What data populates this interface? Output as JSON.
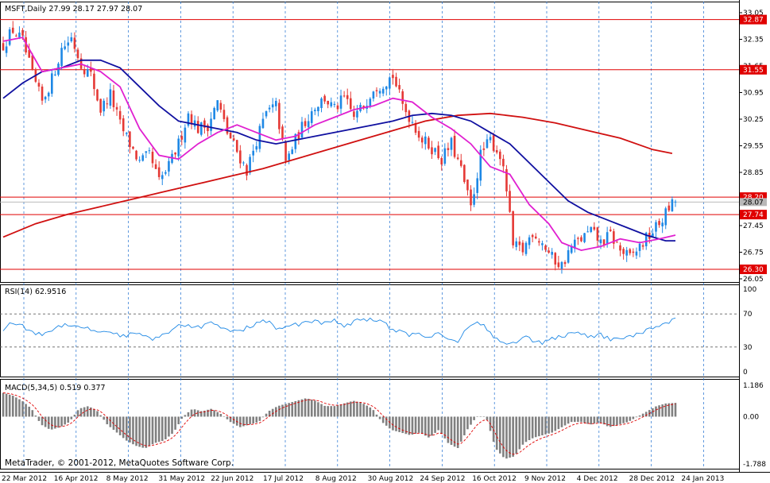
{
  "main_header": "MSFT,Daily  27.99 28.17 27.97 28.07",
  "rsi_header": "RSI(14) 62.9516",
  "macd_header": "MACD(5,34,5) 0.519 0.377",
  "copyright": "MetaTrader, © 2001-2012, MetaQuotes Software Corp.",
  "colors": {
    "bull": "#1e88e5",
    "bear": "#e53935",
    "ma_fast": "#e020d0",
    "ma_mid": "#1010a0",
    "ma_slow": "#d01010",
    "hline": "#e00000",
    "rsi": "#1e88e5",
    "macd_hist": "#808080",
    "macd_signal": "#e00000",
    "grid": "#1e6fd0"
  },
  "chart_data": [
    {
      "type": "candlestick",
      "symbol": "MSFT",
      "timeframe": "Daily",
      "ylim": [
        26.05,
        33.05
      ],
      "y_ticks": [
        "33.05",
        "32.35",
        "31.65",
        "30.95",
        "30.25",
        "29.55",
        "28.85",
        "28.15",
        "27.45",
        "26.75",
        "26.05"
      ],
      "x_labels": [
        "22 Mar 2012",
        "16 Apr 2012",
        "8 May 2012",
        "31 May 2012",
        "22 Jun 2012",
        "17 Jul 2012",
        "8 Aug 2012",
        "30 Aug 2012",
        "24 Sep 2012",
        "16 Oct 2012",
        "9 Nov 2012",
        "4 Dec 2012",
        "28 Dec 2012",
        "24 Jan 2013"
      ],
      "horizontal_levels": [
        "32.87",
        "31.55",
        "28.20",
        "27.74",
        "26.30"
      ],
      "current_price": "28.07",
      "close_path": [
        {
          "t": 0,
          "v": 32.2
        },
        {
          "t": 3,
          "v": 32.6
        },
        {
          "t": 6,
          "v": 32.3
        },
        {
          "t": 9,
          "v": 31.4
        },
        {
          "t": 12,
          "v": 30.7
        },
        {
          "t": 15,
          "v": 31.3
        },
        {
          "t": 18,
          "v": 32.1
        },
        {
          "t": 21,
          "v": 32.4
        },
        {
          "t": 24,
          "v": 31.7
        },
        {
          "t": 27,
          "v": 31.4
        },
        {
          "t": 30,
          "v": 30.5
        },
        {
          "t": 33,
          "v": 30.9
        },
        {
          "t": 36,
          "v": 30.1
        },
        {
          "t": 39,
          "v": 29.6
        },
        {
          "t": 42,
          "v": 29.1
        },
        {
          "t": 45,
          "v": 29.3
        },
        {
          "t": 48,
          "v": 28.6
        },
        {
          "t": 51,
          "v": 29.0
        },
        {
          "t": 54,
          "v": 29.6
        },
        {
          "t": 57,
          "v": 30.4
        },
        {
          "t": 60,
          "v": 30.0
        },
        {
          "t": 63,
          "v": 30.1
        },
        {
          "t": 66,
          "v": 30.7
        },
        {
          "t": 69,
          "v": 29.9
        },
        {
          "t": 72,
          "v": 29.4
        },
        {
          "t": 75,
          "v": 28.9
        },
        {
          "t": 78,
          "v": 29.7
        },
        {
          "t": 81,
          "v": 30.4
        },
        {
          "t": 84,
          "v": 30.6
        },
        {
          "t": 87,
          "v": 29.1
        },
        {
          "t": 90,
          "v": 29.7
        },
        {
          "t": 93,
          "v": 30.2
        },
        {
          "t": 96,
          "v": 30.6
        },
        {
          "t": 99,
          "v": 30.8
        },
        {
          "t": 102,
          "v": 30.5
        },
        {
          "t": 105,
          "v": 30.8
        },
        {
          "t": 108,
          "v": 30.3
        },
        {
          "t": 111,
          "v": 30.6
        },
        {
          "t": 114,
          "v": 31.1
        },
        {
          "t": 117,
          "v": 31.2
        },
        {
          "t": 120,
          "v": 31.4
        },
        {
          "t": 123,
          "v": 30.6
        },
        {
          "t": 126,
          "v": 30.2
        },
        {
          "t": 129,
          "v": 29.7
        },
        {
          "t": 132,
          "v": 29.5
        },
        {
          "t": 135,
          "v": 29.2
        },
        {
          "t": 138,
          "v": 29.6
        },
        {
          "t": 141,
          "v": 28.9
        },
        {
          "t": 144,
          "v": 27.9
        },
        {
          "t": 147,
          "v": 29.3
        },
        {
          "t": 150,
          "v": 29.7
        },
        {
          "t": 153,
          "v": 29.3
        },
        {
          "t": 155,
          "v": 28.4
        },
        {
          "t": 157,
          "v": 26.9
        },
        {
          "t": 160,
          "v": 26.8
        },
        {
          "t": 163,
          "v": 27.3
        },
        {
          "t": 166,
          "v": 27.0
        },
        {
          "t": 169,
          "v": 26.6
        },
        {
          "t": 172,
          "v": 26.4
        },
        {
          "t": 175,
          "v": 26.9
        },
        {
          "t": 178,
          "v": 27.1
        },
        {
          "t": 181,
          "v": 27.3
        },
        {
          "t": 184,
          "v": 27.0
        },
        {
          "t": 187,
          "v": 27.2
        },
        {
          "t": 190,
          "v": 26.8
        },
        {
          "t": 193,
          "v": 26.6
        },
        {
          "t": 196,
          "v": 26.9
        },
        {
          "t": 199,
          "v": 27.2
        },
        {
          "t": 202,
          "v": 27.5
        },
        {
          "t": 205,
          "v": 27.9
        },
        {
          "t": 207,
          "v": 28.1
        }
      ],
      "ma_fast_path": [
        {
          "t": 0,
          "v": 32.3
        },
        {
          "t": 6,
          "v": 32.4
        },
        {
          "t": 12,
          "v": 31.5
        },
        {
          "t": 18,
          "v": 31.6
        },
        {
          "t": 24,
          "v": 31.7
        },
        {
          "t": 30,
          "v": 31.5
        },
        {
          "t": 36,
          "v": 31.1
        },
        {
          "t": 42,
          "v": 30.0
        },
        {
          "t": 48,
          "v": 29.3
        },
        {
          "t": 54,
          "v": 29.2
        },
        {
          "t": 60,
          "v": 29.6
        },
        {
          "t": 66,
          "v": 29.9
        },
        {
          "t": 72,
          "v": 30.1
        },
        {
          "t": 78,
          "v": 29.9
        },
        {
          "t": 84,
          "v": 29.7
        },
        {
          "t": 90,
          "v": 29.8
        },
        {
          "t": 96,
          "v": 30.1
        },
        {
          "t": 102,
          "v": 30.3
        },
        {
          "t": 108,
          "v": 30.5
        },
        {
          "t": 114,
          "v": 30.6
        },
        {
          "t": 120,
          "v": 30.8
        },
        {
          "t": 126,
          "v": 30.7
        },
        {
          "t": 132,
          "v": 30.3
        },
        {
          "t": 138,
          "v": 30.0
        },
        {
          "t": 144,
          "v": 29.6
        },
        {
          "t": 150,
          "v": 29.0
        },
        {
          "t": 156,
          "v": 28.8
        },
        {
          "t": 162,
          "v": 28.0
        },
        {
          "t": 168,
          "v": 27.5
        },
        {
          "t": 172,
          "v": 27.0
        },
        {
          "t": 178,
          "v": 26.8
        },
        {
          "t": 184,
          "v": 26.9
        },
        {
          "t": 190,
          "v": 27.1
        },
        {
          "t": 196,
          "v": 27.0
        },
        {
          "t": 202,
          "v": 27.1
        },
        {
          "t": 207,
          "v": 27.2
        }
      ],
      "ma_mid_path": [
        {
          "t": 0,
          "v": 30.8
        },
        {
          "t": 6,
          "v": 31.2
        },
        {
          "t": 12,
          "v": 31.5
        },
        {
          "t": 18,
          "v": 31.6
        },
        {
          "t": 24,
          "v": 31.8
        },
        {
          "t": 30,
          "v": 31.8
        },
        {
          "t": 36,
          "v": 31.6
        },
        {
          "t": 42,
          "v": 31.1
        },
        {
          "t": 48,
          "v": 30.6
        },
        {
          "t": 54,
          "v": 30.2
        },
        {
          "t": 60,
          "v": 30.1
        },
        {
          "t": 66,
          "v": 30.0
        },
        {
          "t": 72,
          "v": 29.9
        },
        {
          "t": 78,
          "v": 29.7
        },
        {
          "t": 84,
          "v": 29.6
        },
        {
          "t": 90,
          "v": 29.7
        },
        {
          "t": 96,
          "v": 29.8
        },
        {
          "t": 102,
          "v": 29.9
        },
        {
          "t": 108,
          "v": 30.0
        },
        {
          "t": 114,
          "v": 30.1
        },
        {
          "t": 120,
          "v": 30.2
        },
        {
          "t": 126,
          "v": 30.35
        },
        {
          "t": 132,
          "v": 30.4
        },
        {
          "t": 138,
          "v": 30.35
        },
        {
          "t": 144,
          "v": 30.2
        },
        {
          "t": 150,
          "v": 29.9
        },
        {
          "t": 156,
          "v": 29.6
        },
        {
          "t": 162,
          "v": 29.1
        },
        {
          "t": 168,
          "v": 28.6
        },
        {
          "t": 174,
          "v": 28.1
        },
        {
          "t": 180,
          "v": 27.8
        },
        {
          "t": 186,
          "v": 27.6
        },
        {
          "t": 192,
          "v": 27.4
        },
        {
          "t": 198,
          "v": 27.2
        },
        {
          "t": 204,
          "v": 27.05
        },
        {
          "t": 207,
          "v": 27.05
        }
      ],
      "ma_slow_path": [
        {
          "t": 0,
          "v": 27.15
        },
        {
          "t": 10,
          "v": 27.5
        },
        {
          "t": 20,
          "v": 27.75
        },
        {
          "t": 30,
          "v": 27.95
        },
        {
          "t": 40,
          "v": 28.15
        },
        {
          "t": 50,
          "v": 28.35
        },
        {
          "t": 60,
          "v": 28.55
        },
        {
          "t": 70,
          "v": 28.75
        },
        {
          "t": 80,
          "v": 28.95
        },
        {
          "t": 90,
          "v": 29.2
        },
        {
          "t": 100,
          "v": 29.45
        },
        {
          "t": 110,
          "v": 29.7
        },
        {
          "t": 120,
          "v": 29.95
        },
        {
          "t": 130,
          "v": 30.2
        },
        {
          "t": 140,
          "v": 30.35
        },
        {
          "t": 150,
          "v": 30.4
        },
        {
          "t": 160,
          "v": 30.3
        },
        {
          "t": 170,
          "v": 30.15
        },
        {
          "t": 180,
          "v": 29.95
        },
        {
          "t": 190,
          "v": 29.75
        },
        {
          "t": 200,
          "v": 29.45
        },
        {
          "t": 206,
          "v": 29.35
        }
      ]
    },
    {
      "type": "line",
      "name": "RSI(14)",
      "ylim": [
        0,
        100
      ],
      "y_ticks": [
        "100",
        "70",
        "30",
        "0"
      ],
      "levels": [
        70,
        30
      ],
      "values": [
        52,
        60,
        55,
        48,
        45,
        50,
        56,
        58,
        55,
        52,
        48,
        50,
        45,
        44,
        46,
        42,
        40,
        44,
        52,
        58,
        54,
        55,
        60,
        52,
        50,
        48,
        55,
        60,
        61,
        50,
        55,
        57,
        60,
        62,
        58,
        62,
        56,
        60,
        64,
        63,
        62,
        50,
        48,
        44,
        46,
        42,
        48,
        40,
        35,
        55,
        60,
        54,
        40,
        32,
        36,
        42,
        38,
        35,
        40,
        44,
        45,
        46,
        42,
        45,
        40,
        38,
        42,
        46,
        50,
        55,
        60,
        63
      ]
    },
    {
      "type": "bar",
      "name": "MACD(5,34,5)",
      "ylim": [
        -1.788,
        1.186
      ],
      "y_ticks": [
        "1.186",
        "0.00",
        "-1.788"
      ],
      "hist_values": [
        0.9,
        0.8,
        0.6,
        0.3,
        -0.3,
        -0.5,
        -0.4,
        -0.2,
        0.3,
        0.4,
        0.2,
        -0.3,
        -0.6,
        -0.9,
        -1.1,
        -1.2,
        -1.0,
        -0.9,
        -0.6,
        0.0,
        0.3,
        0.2,
        0.3,
        0.1,
        -0.2,
        -0.4,
        -0.3,
        -0.2,
        0.2,
        0.4,
        0.5,
        0.6,
        0.7,
        0.6,
        0.4,
        0.4,
        0.5,
        0.6,
        0.5,
        0.3,
        -0.2,
        -0.5,
        -0.6,
        -0.7,
        -0.6,
        -0.8,
        -0.5,
        -1.0,
        -1.2,
        -0.5,
        0.0,
        0.0,
        -1.2,
        -1.6,
        -1.5,
        -1.0,
        -0.8,
        -0.7,
        -0.6,
        -0.4,
        -0.2,
        -0.2,
        -0.3,
        -0.2,
        -0.4,
        -0.3,
        -0.2,
        0.0,
        0.2,
        0.4,
        0.5,
        0.52
      ]
    }
  ]
}
